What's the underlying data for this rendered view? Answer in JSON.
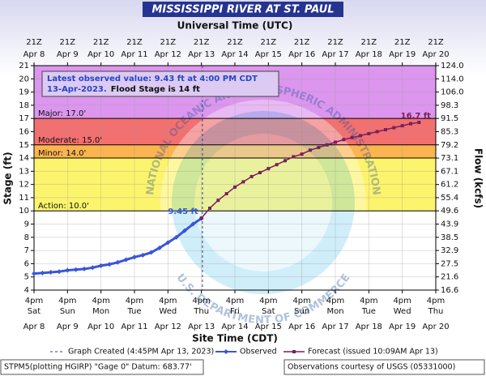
{
  "chart_data": {
    "type": "hydrograph",
    "title": "MISSISSIPPI RIVER AT ST. PAUL",
    "subtitle": "Universal Time (UTC)",
    "x_label": "Site Time (CDT)",
    "y_label": "Stage (ft)",
    "y2_label": "Flow (kcfs)",
    "xlim": [
      "Apr 8 16:00",
      "Apr 20 16:00"
    ],
    "xticks": [
      {
        "value": "Apr 8 16:00",
        "label": [
          "4pm",
          "Sat",
          "Apr 8"
        ]
      },
      {
        "value": "Apr 9 16:00",
        "label": [
          "4pm",
          "Sun",
          "Apr 9"
        ]
      },
      {
        "value": "Apr 10 16:00",
        "label": [
          "4pm",
          "Mon",
          "Apr 10"
        ]
      },
      {
        "value": "Apr 11 16:00",
        "label": [
          "4pm",
          "Tue",
          "Apr 11"
        ]
      },
      {
        "value": "Apr 12 16:00",
        "label": [
          "4pm",
          "Wed",
          "Apr 12"
        ]
      },
      {
        "value": "Apr 13 16:00",
        "label": [
          "4pm",
          "Thu",
          "Apr 13"
        ]
      },
      {
        "value": "Apr 14 16:00",
        "label": [
          "4pm",
          "Fri",
          "Apr 14"
        ]
      },
      {
        "value": "Apr 15 16:00",
        "label": [
          "4pm",
          "Sat",
          "Apr 15"
        ]
      },
      {
        "value": "Apr 16 16:00",
        "label": [
          "4pm",
          "Sun",
          "Apr 16"
        ]
      },
      {
        "value": "Apr 17 16:00",
        "label": [
          "4pm",
          "Mon",
          "Apr 17"
        ]
      },
      {
        "value": "Apr 18 16:00",
        "label": [
          "4pm",
          "Tue",
          "Apr 18"
        ]
      },
      {
        "value": "Apr 19 16:00",
        "label": [
          "4pm",
          "Wed",
          "Apr 19"
        ]
      },
      {
        "value": "Apr 20 16:00",
        "label": [
          "4pm",
          "Thu",
          "Apr 20"
        ]
      }
    ],
    "x2ticks": [
      [
        "21Z",
        "Apr 8"
      ],
      [
        "21Z",
        "Apr 9"
      ],
      [
        "21Z",
        "Apr 10"
      ],
      [
        "21Z",
        "Apr 11"
      ],
      [
        "21Z",
        "Apr 12"
      ],
      [
        "21Z",
        "Apr 13"
      ],
      [
        "21Z",
        "Apr 14"
      ],
      [
        "21Z",
        "Apr 15"
      ],
      [
        "21Z",
        "Apr 16"
      ],
      [
        "21Z",
        "Apr 17"
      ],
      [
        "21Z",
        "Apr 18"
      ],
      [
        "21Z",
        "Apr 19"
      ],
      [
        "21Z",
        "Apr 20"
      ]
    ],
    "ylim": [
      4,
      21
    ],
    "yticks": [
      4,
      5,
      6,
      7,
      8,
      9,
      10,
      11,
      12,
      13,
      14,
      15,
      16,
      17,
      18,
      19,
      20,
      21
    ],
    "y2lim": [
      16.6,
      124
    ],
    "y2ticks": [
      16.6,
      21.6,
      27.5,
      32.9,
      38.5,
      43.9,
      49.6,
      55.4,
      61.2,
      67.1,
      73.1,
      79.2,
      85.3,
      91.5,
      98.3,
      {
        "value": 106,
        "label": "106.0"
      },
      {
        "value": 114,
        "label": "114.0"
      },
      {
        "value": 124,
        "label": "124.0"
      }
    ],
    "grid": true,
    "flood_levels": [
      {
        "label": "Major: 17.0'",
        "value": 17,
        "color": "#dc96ee"
      },
      {
        "label": "Moderate: 15.0'",
        "value": 15,
        "color": "#f27070"
      },
      {
        "label": "Minor: 14.0'",
        "value": 14,
        "color": "#fcb450"
      },
      {
        "label": "Action: 10.0'",
        "value": 10,
        "color": "#fcf46c"
      }
    ],
    "annotation": [
      "Latest observed value: 9.43 ft at 4:00 PM CDT",
      "13-Apr-2023.",
      "Flood Stage is 14 ft"
    ],
    "watermark": [
      "NATIONAL OCEANIC AND ATMOSPHERIC ADMINISTRATION",
      "U.S. DEPARTMENT OF COMMERCE"
    ],
    "created_x": "Apr 13 16:45",
    "created_label": "Graph Created (4:45PM Apr 13, 2023)",
    "series": [
      {
        "name": "Observed",
        "color": "#3a55d8",
        "x": [
          "Apr 8 16:00",
          "Apr 8 22:00",
          "Apr 9 04:00",
          "Apr 9 10:00",
          "Apr 9 16:00",
          "Apr 9 22:00",
          "Apr 10 04:00",
          "Apr 10 10:00",
          "Apr 10 16:00",
          "Apr 10 22:00",
          "Apr 11 04:00",
          "Apr 11 10:00",
          "Apr 11 16:00",
          "Apr 11 22:00",
          "Apr 12 04:00",
          "Apr 12 10:00",
          "Apr 12 16:00",
          "Apr 12 22:00",
          "Apr 13 04:00",
          "Apr 13 10:00",
          "Apr 13 16:00"
        ],
        "values": [
          5.25,
          5.3,
          5.35,
          5.4,
          5.5,
          5.55,
          5.6,
          5.7,
          5.85,
          5.95,
          6.1,
          6.3,
          6.5,
          6.65,
          6.85,
          7.2,
          7.6,
          8.0,
          8.5,
          9.0,
          9.43
        ]
      },
      {
        "name": "Forecast (issued 10:09AM Apr 13)",
        "color": "#7a1f5c",
        "x": [
          "Apr 13 16:00",
          "Apr 13 22:00",
          "Apr 14 04:00",
          "Apr 14 10:00",
          "Apr 14 16:00",
          "Apr 14 22:00",
          "Apr 15 04:00",
          "Apr 15 10:00",
          "Apr 15 16:00",
          "Apr 15 22:00",
          "Apr 16 04:00",
          "Apr 16 10:00",
          "Apr 16 16:00",
          "Apr 16 22:00",
          "Apr 17 04:00",
          "Apr 17 10:00",
          "Apr 17 16:00",
          "Apr 17 22:00",
          "Apr 18 04:00",
          "Apr 18 10:00",
          "Apr 18 16:00",
          "Apr 18 22:00",
          "Apr 19 04:00",
          "Apr 19 10:00",
          "Apr 19 16:00",
          "Apr 19 22:00",
          "Apr 20 04:00"
        ],
        "values": [
          9.45,
          10.2,
          10.8,
          11.3,
          11.8,
          12.2,
          12.6,
          12.9,
          13.2,
          13.5,
          13.8,
          14.1,
          14.3,
          14.6,
          14.8,
          15.0,
          15.2,
          15.4,
          15.55,
          15.7,
          15.85,
          16.0,
          16.15,
          16.3,
          16.45,
          16.6,
          16.7
        ],
        "value_labels": [
          "9.45 ft",
          null,
          null,
          null,
          null,
          null,
          null,
          null,
          null,
          null,
          null,
          null,
          null,
          null,
          null,
          null,
          null,
          null,
          null,
          null,
          null,
          null,
          null,
          null,
          null,
          null,
          "16.7 ft"
        ]
      }
    ],
    "footer_left": "STPM5(plotting HGIRP) \"Gage 0\" Datum: 683.77'",
    "footer_right": "Observations courtesy of USGS (05331000)"
  }
}
